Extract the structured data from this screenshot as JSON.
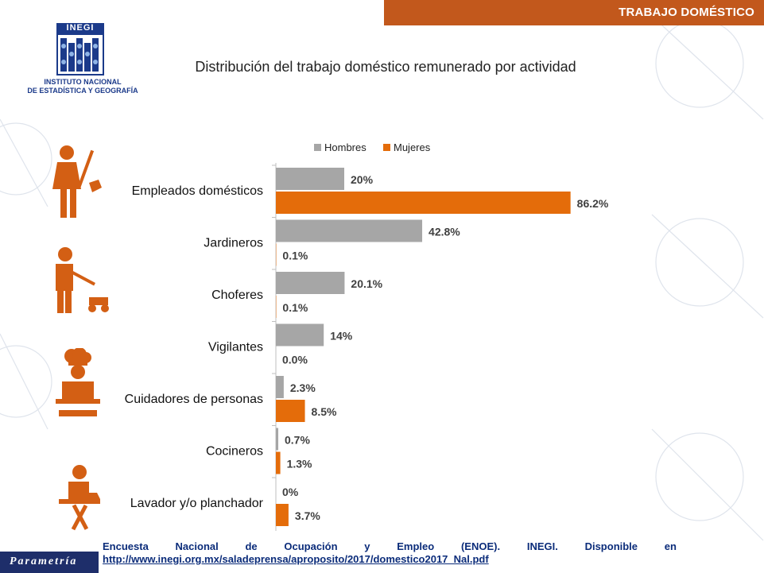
{
  "header": {
    "title": "TRABAJO DOMÉSTICO"
  },
  "logo": {
    "acronym": "INEGI",
    "line1": "INSTITUTO NACIONAL",
    "line2": "DE ESTADÍSTICA Y GEOGRAFÍA"
  },
  "brand": "Parametría",
  "colors": {
    "accent": "#c2581c",
    "hombres": "#a6a6a6",
    "mujeres": "#e46c0a",
    "link": "#0b2c7a"
  },
  "chart_data": {
    "type": "bar",
    "orientation": "horizontal",
    "title": "Distribución del trabajo doméstico remunerado por actividad",
    "legend_position": "top",
    "categories": [
      "Empleados domésticos",
      "Jardineros",
      "Choferes",
      "Vigilantes",
      "Cuidadores de personas",
      "Cocineros",
      "Lavador y/o planchador"
    ],
    "series": [
      {
        "name": "Hombres",
        "values": [
          20,
          42.8,
          20.1,
          14,
          2.3,
          0.7,
          0
        ],
        "labels": [
          "20%",
          "42.8%",
          "20.1%",
          "14%",
          "2.3%",
          "0.7%",
          "0%"
        ]
      },
      {
        "name": "Mujeres",
        "values": [
          86.2,
          0.1,
          0.1,
          0.0,
          8.5,
          1.3,
          3.7
        ],
        "labels": [
          "86.2%",
          "0.1%",
          "0.1%",
          "0.0%",
          "8.5%",
          "1.3%",
          "3.7%"
        ]
      }
    ],
    "xlim": [
      0,
      100
    ],
    "grid": false
  },
  "icons": [
    "maid-icon",
    "lawnmower-icon",
    "driver-icon",
    "guard-icon",
    "chef-icon",
    "cook-icon",
    "ironing-icon"
  ],
  "footer": {
    "line1_words": [
      "Encuesta",
      "Nacional",
      "de",
      "Ocupación",
      "y",
      "Empleo",
      "(ENOE).",
      "INEGI.",
      "Disponible",
      "en"
    ],
    "link": "http://www.inegi.org.mx/saladeprensa/aproposito/2017/domestico2017_Nal.pdf"
  }
}
